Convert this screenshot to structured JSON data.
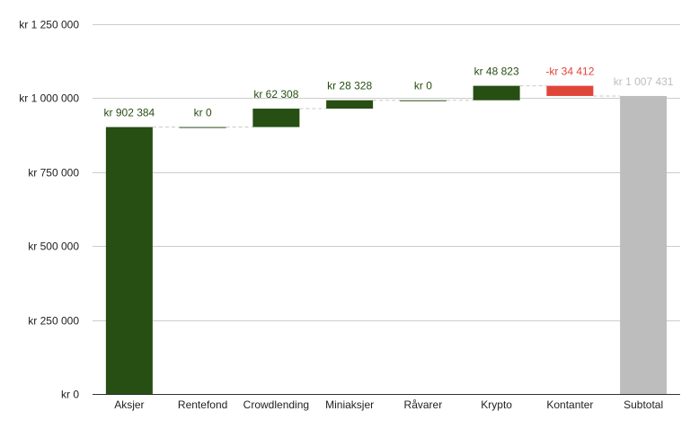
{
  "colors": {
    "increase": "#274e13",
    "decrease": "#e0453a",
    "total": "#bdbdbd",
    "grid": "#cccccc",
    "axis_text": "#222222",
    "connector": "#c8c8c8"
  },
  "chart_data": {
    "type": "waterfall",
    "title": "",
    "xlabel": "",
    "ylabel": "",
    "ylim": [
      0,
      1250000
    ],
    "y_ticks": [
      {
        "value": 0,
        "label": "kr   0"
      },
      {
        "value": 250000,
        "label": "kr  250 000"
      },
      {
        "value": 500000,
        "label": "kr  500 000"
      },
      {
        "value": 750000,
        "label": "kr  750 000"
      },
      {
        "value": 1000000,
        "label": "kr 1 000 000"
      },
      {
        "value": 1250000,
        "label": "kr 1 250 000"
      }
    ],
    "grid": true,
    "legend": "none",
    "steps": [
      {
        "category": "Aksjer",
        "value": 902384,
        "kind": "increase",
        "label": "kr  902 384"
      },
      {
        "category": "Rentefond",
        "value": 0,
        "kind": "increase",
        "label": "kr   0"
      },
      {
        "category": "Crowdlending",
        "value": 62308,
        "kind": "increase",
        "label": "kr  62 308"
      },
      {
        "category": "Miniaksjer",
        "value": 28328,
        "kind": "increase",
        "label": "kr  28 328"
      },
      {
        "category": "Råvarer",
        "value": 0,
        "kind": "increase",
        "label": "kr   0"
      },
      {
        "category": "Krypto",
        "value": 48823,
        "kind": "increase",
        "label": "kr  48 823"
      },
      {
        "category": "Kontanter",
        "value": -34412,
        "kind": "decrease",
        "label": "-kr  34 412"
      },
      {
        "category": "Subtotal",
        "value": 1007431,
        "kind": "total",
        "label": "kr 1 007 431"
      }
    ]
  }
}
